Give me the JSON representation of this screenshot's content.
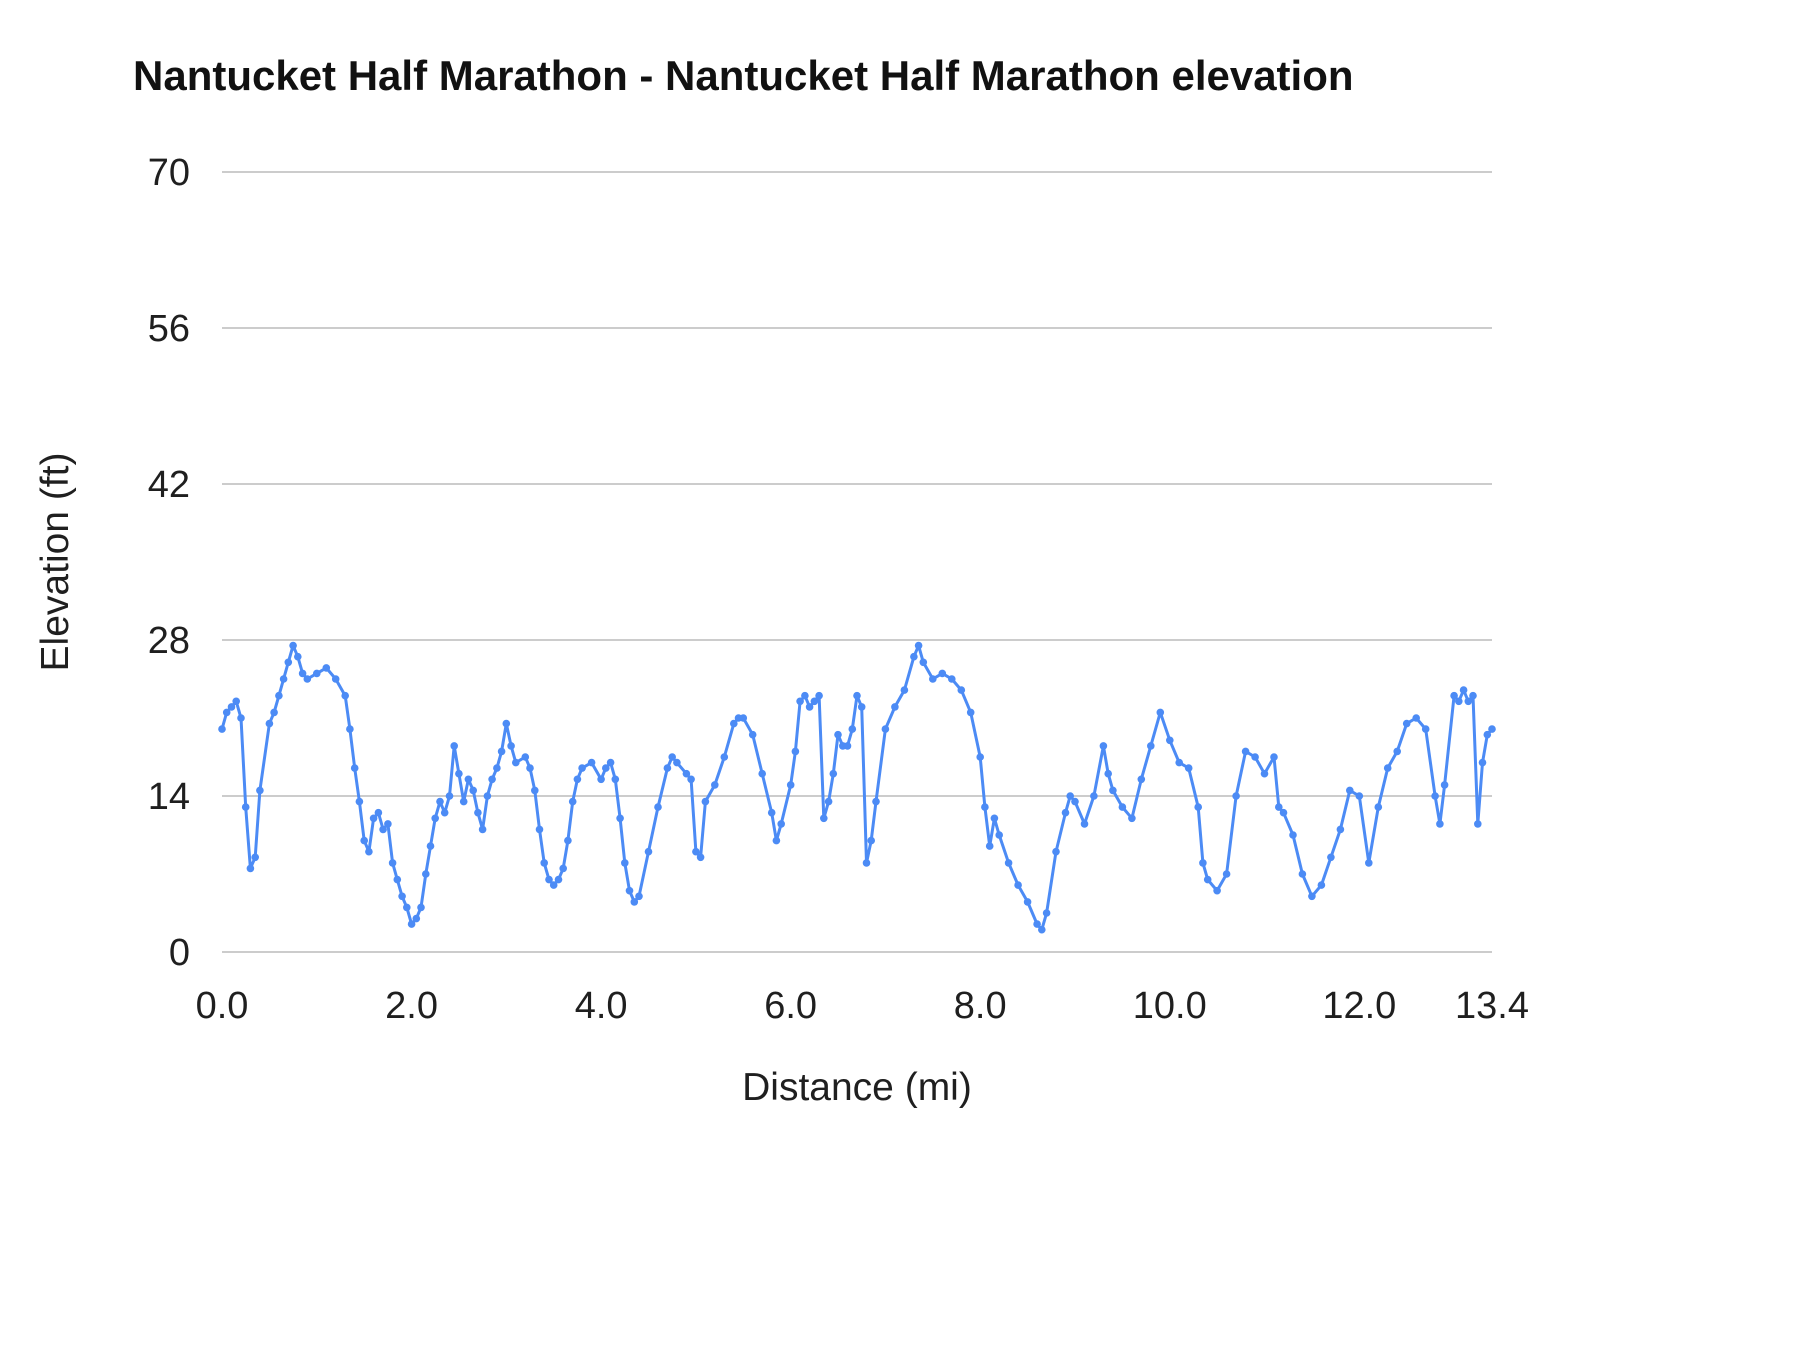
{
  "chart_data": {
    "type": "line",
    "title": "Nantucket Half Marathon - Nantucket Half Marathon elevation",
    "xlabel": "Distance (mi)",
    "ylabel": "Elevation (ft)",
    "xlim": [
      0,
      13.4
    ],
    "ylim": [
      0,
      70
    ],
    "x_ticks": [
      "0.0",
      "2.0",
      "4.0",
      "6.0",
      "8.0",
      "10.0",
      "12.0",
      "13.4"
    ],
    "y_ticks": [
      "0",
      "14",
      "28",
      "42",
      "56",
      "70"
    ],
    "grid": true,
    "legend": false,
    "marker": "circle",
    "line_color": "#4c8bf5",
    "grid_color": "#cccccc",
    "series": [
      {
        "name": "Nantucket Half Marathon elevation",
        "points": [
          [
            0.0,
            20
          ],
          [
            0.05,
            21.5
          ],
          [
            0.1,
            22
          ],
          [
            0.15,
            22.5
          ],
          [
            0.2,
            21
          ],
          [
            0.25,
            13
          ],
          [
            0.3,
            7.5
          ],
          [
            0.35,
            8.5
          ],
          [
            0.4,
            14.5
          ],
          [
            0.5,
            20.5
          ],
          [
            0.55,
            21.5
          ],
          [
            0.6,
            23
          ],
          [
            0.65,
            24.5
          ],
          [
            0.7,
            26
          ],
          [
            0.75,
            27.5
          ],
          [
            0.8,
            26.5
          ],
          [
            0.85,
            25
          ],
          [
            0.9,
            24.5
          ],
          [
            1.0,
            25
          ],
          [
            1.1,
            25.5
          ],
          [
            1.2,
            24.5
          ],
          [
            1.3,
            23
          ],
          [
            1.35,
            20
          ],
          [
            1.4,
            16.5
          ],
          [
            1.45,
            13.5
          ],
          [
            1.5,
            10
          ],
          [
            1.55,
            9
          ],
          [
            1.6,
            12
          ],
          [
            1.65,
            12.5
          ],
          [
            1.7,
            11
          ],
          [
            1.75,
            11.5
          ],
          [
            1.8,
            8
          ],
          [
            1.85,
            6.5
          ],
          [
            1.9,
            5
          ],
          [
            1.95,
            4
          ],
          [
            2.0,
            2.5
          ],
          [
            2.05,
            3
          ],
          [
            2.1,
            4
          ],
          [
            2.15,
            7
          ],
          [
            2.2,
            9.5
          ],
          [
            2.25,
            12
          ],
          [
            2.3,
            13.5
          ],
          [
            2.35,
            12.5
          ],
          [
            2.4,
            14
          ],
          [
            2.45,
            18.5
          ],
          [
            2.5,
            16
          ],
          [
            2.55,
            13.5
          ],
          [
            2.6,
            15.5
          ],
          [
            2.65,
            14.5
          ],
          [
            2.7,
            12.5
          ],
          [
            2.75,
            11
          ],
          [
            2.8,
            14
          ],
          [
            2.85,
            15.5
          ],
          [
            2.9,
            16.5
          ],
          [
            2.95,
            18
          ],
          [
            3.0,
            20.5
          ],
          [
            3.05,
            18.5
          ],
          [
            3.1,
            17
          ],
          [
            3.2,
            17.5
          ],
          [
            3.25,
            16.5
          ],
          [
            3.3,
            14.5
          ],
          [
            3.35,
            11
          ],
          [
            3.4,
            8
          ],
          [
            3.45,
            6.5
          ],
          [
            3.5,
            6
          ],
          [
            3.55,
            6.5
          ],
          [
            3.6,
            7.5
          ],
          [
            3.65,
            10
          ],
          [
            3.7,
            13.5
          ],
          [
            3.75,
            15.5
          ],
          [
            3.8,
            16.5
          ],
          [
            3.9,
            17
          ],
          [
            4.0,
            15.5
          ],
          [
            4.05,
            16.5
          ],
          [
            4.1,
            17
          ],
          [
            4.15,
            15.5
          ],
          [
            4.2,
            12
          ],
          [
            4.25,
            8
          ],
          [
            4.3,
            5.5
          ],
          [
            4.35,
            4.5
          ],
          [
            4.4,
            5
          ],
          [
            4.5,
            9
          ],
          [
            4.6,
            13
          ],
          [
            4.7,
            16.5
          ],
          [
            4.75,
            17.5
          ],
          [
            4.8,
            17
          ],
          [
            4.9,
            16
          ],
          [
            4.95,
            15.5
          ],
          [
            5.0,
            9
          ],
          [
            5.05,
            8.5
          ],
          [
            5.1,
            13.5
          ],
          [
            5.2,
            15
          ],
          [
            5.3,
            17.5
          ],
          [
            5.4,
            20.5
          ],
          [
            5.45,
            21
          ],
          [
            5.5,
            21
          ],
          [
            5.6,
            19.5
          ],
          [
            5.7,
            16
          ],
          [
            5.8,
            12.5
          ],
          [
            5.85,
            10
          ],
          [
            5.9,
            11.5
          ],
          [
            6.0,
            15
          ],
          [
            6.05,
            18
          ],
          [
            6.1,
            22.5
          ],
          [
            6.15,
            23
          ],
          [
            6.2,
            22
          ],
          [
            6.25,
            22.5
          ],
          [
            6.3,
            23
          ],
          [
            6.35,
            12
          ],
          [
            6.4,
            13.5
          ],
          [
            6.45,
            16
          ],
          [
            6.5,
            19.5
          ],
          [
            6.55,
            18.5
          ],
          [
            6.6,
            18.5
          ],
          [
            6.65,
            20
          ],
          [
            6.7,
            23
          ],
          [
            6.75,
            22
          ],
          [
            6.8,
            8
          ],
          [
            6.85,
            10
          ],
          [
            6.9,
            13.5
          ],
          [
            7.0,
            20
          ],
          [
            7.1,
            22
          ],
          [
            7.2,
            23.5
          ],
          [
            7.3,
            26.5
          ],
          [
            7.35,
            27.5
          ],
          [
            7.4,
            26
          ],
          [
            7.5,
            24.5
          ],
          [
            7.6,
            25
          ],
          [
            7.7,
            24.5
          ],
          [
            7.8,
            23.5
          ],
          [
            7.9,
            21.5
          ],
          [
            8.0,
            17.5
          ],
          [
            8.05,
            13
          ],
          [
            8.1,
            9.5
          ],
          [
            8.15,
            12
          ],
          [
            8.2,
            10.5
          ],
          [
            8.3,
            8
          ],
          [
            8.4,
            6
          ],
          [
            8.5,
            4.5
          ],
          [
            8.6,
            2.5
          ],
          [
            8.65,
            2
          ],
          [
            8.7,
            3.5
          ],
          [
            8.8,
            9
          ],
          [
            8.9,
            12.5
          ],
          [
            8.95,
            14
          ],
          [
            9.0,
            13.5
          ],
          [
            9.1,
            11.5
          ],
          [
            9.2,
            14
          ],
          [
            9.3,
            18.5
          ],
          [
            9.35,
            16
          ],
          [
            9.4,
            14.5
          ],
          [
            9.5,
            13
          ],
          [
            9.6,
            12
          ],
          [
            9.7,
            15.5
          ],
          [
            9.8,
            18.5
          ],
          [
            9.9,
            21.5
          ],
          [
            10.0,
            19
          ],
          [
            10.1,
            17
          ],
          [
            10.2,
            16.5
          ],
          [
            10.3,
            13
          ],
          [
            10.35,
            8
          ],
          [
            10.4,
            6.5
          ],
          [
            10.5,
            5.5
          ],
          [
            10.6,
            7
          ],
          [
            10.7,
            14
          ],
          [
            10.8,
            18
          ],
          [
            10.9,
            17.5
          ],
          [
            11.0,
            16
          ],
          [
            11.1,
            17.5
          ],
          [
            11.15,
            13
          ],
          [
            11.2,
            12.5
          ],
          [
            11.3,
            10.5
          ],
          [
            11.4,
            7
          ],
          [
            11.5,
            5
          ],
          [
            11.6,
            6
          ],
          [
            11.7,
            8.5
          ],
          [
            11.8,
            11
          ],
          [
            11.9,
            14.5
          ],
          [
            12.0,
            14
          ],
          [
            12.1,
            8
          ],
          [
            12.2,
            13
          ],
          [
            12.3,
            16.5
          ],
          [
            12.4,
            18
          ],
          [
            12.5,
            20.5
          ],
          [
            12.6,
            21
          ],
          [
            12.7,
            20
          ],
          [
            12.8,
            14
          ],
          [
            12.85,
            11.5
          ],
          [
            12.9,
            15
          ],
          [
            13.0,
            23
          ],
          [
            13.05,
            22.5
          ],
          [
            13.1,
            23.5
          ],
          [
            13.15,
            22.5
          ],
          [
            13.2,
            23
          ],
          [
            13.25,
            11.5
          ],
          [
            13.3,
            17
          ],
          [
            13.35,
            19.5
          ],
          [
            13.4,
            20
          ]
        ]
      }
    ]
  }
}
